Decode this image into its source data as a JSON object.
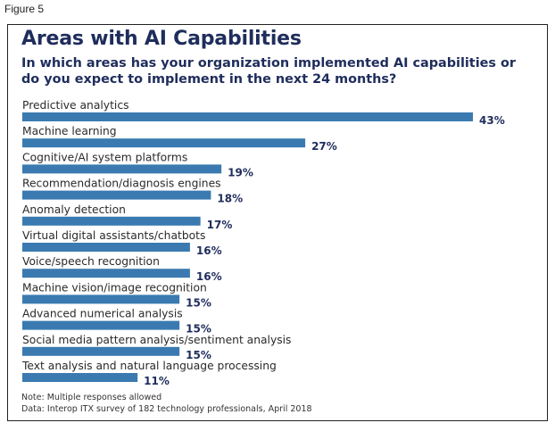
{
  "figure_label": "Figure 5",
  "chart_data": {
    "type": "bar",
    "orientation": "horizontal",
    "title": "Areas with AI Capabilities",
    "subtitle": "In which areas has your organization implemented AI capabilities or do you expect to implement in the next 24 months?",
    "categories": [
      "Predictive analytics",
      "Machine learning",
      "Cognitive/AI system platforms",
      "Recommendation/diagnosis engines",
      "Anomaly detection",
      "Virtual digital assistants/chatbots",
      "Voice/speech recognition",
      "Machine vision/image recognition",
      "Advanced numerical analysis",
      "Social media pattern analysis/sentiment analysis",
      "Text analysis and natural language processing"
    ],
    "values": [
      43,
      27,
      19,
      18,
      17,
      16,
      16,
      15,
      15,
      15,
      11
    ],
    "value_suffix": "%",
    "xlabel": "",
    "ylabel": "",
    "xlim": [
      0,
      43
    ],
    "grid": false,
    "legend": "none",
    "bar_color": "#3a7ab0",
    "notes": [
      "Note: Multiple responses allowed",
      "Data: Interop ITX survey of 182 technology professionals, April 2018"
    ]
  },
  "colors": {
    "title": "#1f2d5c",
    "bar": "#3a7ab0",
    "value_label": "#1f2d5c"
  }
}
